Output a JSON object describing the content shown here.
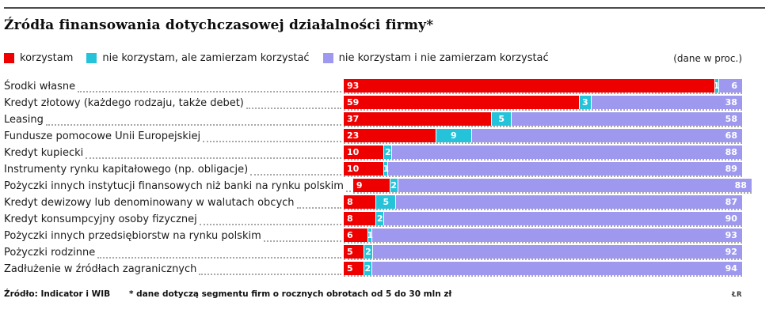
{
  "title": "Źródła finansowania dotychczasowej działalności firmy*",
  "unit_note": "(dane w proc.)",
  "legend": [
    {
      "label": "korzystam",
      "color": "#ee0000"
    },
    {
      "label": "nie korzystam, ale zamierzam korzystać",
      "color": "#25c3da"
    },
    {
      "label": "nie korzystam i nie zamierzam korzystać",
      "color": "#9e99ef"
    }
  ],
  "chart_data": {
    "type": "bar",
    "orientation": "horizontal",
    "stacked": true,
    "xlim": [
      0,
      100
    ],
    "unit": "percent",
    "categories": [
      "Środki własne",
      "Kredyt złotowy (każdego rodzaju, także debet)",
      "Leasing",
      "Fundusze pomocowe Unii Europejskiej",
      "Kredyt kupiecki",
      "Instrumenty rynku kapitałowego (np. obligacje)",
      "Pożyczki innych instytucji finansowych niż banki na rynku polskim",
      "Kredyt dewizowy lub denominowany w walutach obcych",
      "Kredyt konsumpcyjny osoby fizycznej",
      "Pożyczki innych przedsiębiorstw na rynku polskim",
      "Pożyczki rodzinne",
      "Zadłużenie w źródłach zagranicznych"
    ],
    "series": [
      {
        "name": "korzystam",
        "color": "#ee0000",
        "values": [
          93,
          59,
          37,
          23,
          10,
          10,
          9,
          8,
          8,
          6,
          5,
          5
        ]
      },
      {
        "name": "nie korzystam, ale zamierzam korzystać",
        "color": "#25c3da",
        "values": [
          1,
          3,
          5,
          9,
          2,
          1,
          2,
          5,
          2,
          1,
          2,
          2
        ]
      },
      {
        "name": "nie korzystam i nie zamierzam korzystać",
        "color": "#9e99ef",
        "values": [
          6,
          38,
          58,
          68,
          88,
          89,
          88,
          87,
          90,
          93,
          92,
          94
        ]
      }
    ]
  },
  "footer": {
    "source": "Źródło: Indicator i WIB",
    "note": "* dane dotyczą segmentu firm o rocznych obrotach od 5 do 30 mln zł",
    "credit": "ŁR"
  }
}
